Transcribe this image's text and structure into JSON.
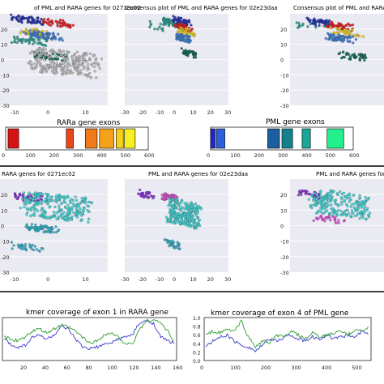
{
  "figure": {
    "section_a": {
      "scatter_titles": [
        "of PML and RARA genes for 0271ec02",
        "Consensus plot of PML and RARA genes for 02e23daa",
        "Consensus plot of PML and RARA genes for"
      ],
      "exon_titles": [
        "RARa gene exons",
        "PML gene exons"
      ]
    },
    "section_b": {
      "scatter_titles": [
        "RARA genes for 0271ec02",
        "PML and RARA genes for 02e23daa",
        "PML and RARA genes for"
      ]
    },
    "section_c": {
      "line_titles": [
        "kmer coverage of exon 1 in RARA gene",
        "kmer coverage of exon 4 of PML gene"
      ]
    }
  },
  "colors": {
    "panel_bg": "#eaeaf2",
    "grid": "#ffffff",
    "line_blue": "#3a3ac8",
    "line_green": "#2e9e2e",
    "rara_exons": [
      "#d61313",
      "#e8461b",
      "#f07a1a",
      "#f5a21a",
      "#f7d018",
      "#f6f01e"
    ],
    "pml_exons": [
      "#1f28c9",
      "#2a5fe0",
      "#1d5e9e",
      "#13808c",
      "#1aa698",
      "#22f08a"
    ],
    "clusters_a": [
      "#1f2fb0",
      "#e81a1a",
      "#f0d21a",
      "#3c7fd6",
      "#1f9f8f",
      "#0f6b58",
      "#bdbdbd"
    ],
    "clusters_b": [
      "#3fd6d6",
      "#8a2fd6",
      "#2ab0c8",
      "#e14fd6"
    ]
  },
  "chart_data": [
    {
      "type": "scatter",
      "title": "of PML and RARA genes for 0271ec02",
      "ylim": [
        -30,
        30
      ],
      "yticks": [
        20,
        10,
        0,
        -10,
        -20,
        -30
      ],
      "xticks": [
        -10,
        0,
        10
      ],
      "clusters": [
        {
          "x": -6,
          "y": 26,
          "n": 60,
          "color": "#1f2fb0"
        },
        {
          "x": 2,
          "y": 24,
          "n": 40,
          "color": "#e81a1a"
        },
        {
          "x": -4,
          "y": 18,
          "n": 30,
          "color": "#f0d21a"
        },
        {
          "x": -2,
          "y": 16,
          "n": 70,
          "color": "#3c7fd6"
        },
        {
          "x": -6,
          "y": 12,
          "n": 40,
          "color": "#1f9f8f"
        },
        {
          "x": 0,
          "y": 2,
          "n": 50,
          "color": "#0f6b58"
        },
        {
          "x": 4,
          "y": -2,
          "n": 260,
          "color": "#bdbdbd"
        }
      ]
    },
    {
      "type": "scatter",
      "title": "Consensus plot of PML and RARA genes for 02e23daa",
      "ylim": [
        -30,
        30
      ],
      "xticks": [
        -30,
        -20,
        -10,
        0,
        10,
        20,
        30
      ],
      "clusters": [
        {
          "x": -3,
          "y": 24,
          "n": 40,
          "color": "#1f9f8f"
        },
        {
          "x": 3,
          "y": 25,
          "n": 60,
          "color": "#1f2fb0"
        },
        {
          "x": 4,
          "y": 21,
          "n": 40,
          "color": "#e81a1a"
        },
        {
          "x": 6,
          "y": 18,
          "n": 30,
          "color": "#f0d21a"
        },
        {
          "x": 4,
          "y": 14,
          "n": 60,
          "color": "#3c7fd6"
        },
        {
          "x": -12,
          "y": 22,
          "n": 12,
          "color": "#1f9f8f"
        },
        {
          "x": 8,
          "y": 4,
          "n": 40,
          "color": "#0f6b58"
        }
      ]
    },
    {
      "type": "scatter",
      "title": "Consensus plot of PML and RARA genes for",
      "ylim": [
        -30,
        30
      ],
      "yticks": [
        20,
        10,
        0,
        -10,
        -20,
        -30
      ],
      "clusters": [
        {
          "x": -4,
          "y": 24,
          "n": 50,
          "color": "#1f2fb0"
        },
        {
          "x": 2,
          "y": 22,
          "n": 40,
          "color": "#e81a1a"
        },
        {
          "x": 4,
          "y": 18,
          "n": 30,
          "color": "#f0d21a"
        },
        {
          "x": 2,
          "y": 14,
          "n": 60,
          "color": "#3c7fd6"
        },
        {
          "x": -8,
          "y": 22,
          "n": 12,
          "color": "#1f9f8f"
        },
        {
          "x": 6,
          "y": 2,
          "n": 40,
          "color": "#0f6b58"
        }
      ]
    },
    {
      "type": "bar",
      "title": "RARa gene exons",
      "xlim": [
        0,
        600
      ],
      "xticks": [
        0,
        100,
        200,
        300,
        400,
        500,
        600
      ],
      "exons": [
        [
          10,
          55
        ],
        [
          255,
          285
        ],
        [
          335,
          385
        ],
        [
          395,
          455
        ],
        [
          465,
          495
        ],
        [
          500,
          545
        ]
      ]
    },
    {
      "type": "bar",
      "title": "PML gene exons",
      "xlim": [
        0,
        600
      ],
      "xticks": [
        0,
        100,
        200,
        300,
        400,
        500,
        600
      ],
      "exons": [
        [
          0,
          20
        ],
        [
          25,
          60
        ],
        [
          240,
          290
        ],
        [
          300,
          345
        ],
        [
          385,
          420
        ],
        [
          490,
          560
        ]
      ]
    },
    {
      "type": "scatter",
      "title": "RARA genes for 0271ec02",
      "ylim": [
        -30,
        30
      ],
      "yticks": [
        20,
        10,
        0,
        -10,
        -20,
        -30
      ],
      "xticks": [
        -10,
        0,
        10
      ],
      "clusters": [
        {
          "x": -6,
          "y": 18,
          "n": 40,
          "color": "#8a2fd6"
        },
        {
          "x": 2,
          "y": 12,
          "n": 260,
          "color": "#3fd6d6"
        },
        {
          "x": -2,
          "y": -2,
          "n": 60,
          "color": "#2ab0c8"
        },
        {
          "x": -6,
          "y": -14,
          "n": 30,
          "color": "#2ab0c8"
        }
      ]
    },
    {
      "type": "scatter",
      "title": "PML and RARA genes for 02e23daa",
      "ylim": [
        -30,
        30
      ],
      "xticks": [
        -30,
        -20,
        -10,
        0,
        10,
        20,
        30
      ],
      "clusters": [
        {
          "x": -18,
          "y": 20,
          "n": 30,
          "color": "#8a2fd6"
        },
        {
          "x": -4,
          "y": 18,
          "n": 60,
          "color": "#e14fd6"
        },
        {
          "x": 4,
          "y": 8,
          "n": 260,
          "color": "#3fd6d6"
        },
        {
          "x": -2,
          "y": -12,
          "n": 30,
          "color": "#2ab0c8"
        }
      ]
    },
    {
      "type": "scatter",
      "title": "PML and RARA genes for",
      "ylim": [
        -30,
        30
      ],
      "yticks": [
        20,
        10,
        0,
        -10,
        -20,
        -30
      ],
      "clusters": [
        {
          "x": -8,
          "y": 20,
          "n": 30,
          "color": "#8a2fd6"
        },
        {
          "x": 2,
          "y": 14,
          "n": 230,
          "color": "#3fd6d6"
        },
        {
          "x": -2,
          "y": 4,
          "n": 30,
          "color": "#e14fd6"
        }
      ]
    },
    {
      "type": "line",
      "title": "kmer coverage of exon 1 in RARA gene",
      "xlim": [
        0,
        160
      ],
      "xticks": [
        20,
        40,
        60,
        80,
        100,
        120,
        140,
        160
      ],
      "series": [
        {
          "color": "#3a3ac8",
          "y": [
            0.5,
            0.35,
            0.3,
            0.35,
            0.55,
            0.6,
            0.5,
            0.6,
            0.8,
            0.75,
            0.5,
            0.3,
            0.25,
            0.3,
            0.35,
            0.4,
            0.5,
            0.55,
            0.6,
            0.9,
            0.95,
            0.9,
            0.55,
            0.45,
            0.4
          ]
        },
        {
          "color": "#2e9e2e",
          "y": [
            0.55,
            0.5,
            0.45,
            0.55,
            0.7,
            0.75,
            0.65,
            0.75,
            0.85,
            0.8,
            0.7,
            0.55,
            0.4,
            0.45,
            0.6,
            0.65,
            0.55,
            0.4,
            0.35,
            0.75,
            0.95,
            1.0,
            0.9,
            0.7,
            0.4
          ]
        }
      ]
    },
    {
      "type": "line",
      "title": "kmer coverage of exon 4 of PML gene",
      "xlim": [
        0,
        550
      ],
      "ylim": [
        0,
        1.0
      ],
      "yticks": [
        1.0,
        0.8,
        0.6,
        0.4,
        0.2,
        0.0
      ],
      "xticks": [
        0,
        100,
        200,
        300,
        400,
        500
      ],
      "series": [
        {
          "color": "#3a3ac8",
          "y": [
            0.3,
            0.45,
            0.55,
            0.6,
            0.45,
            0.35,
            0.3,
            0.2,
            0.35,
            0.5,
            0.45,
            0.55,
            0.6,
            0.5,
            0.45,
            0.55,
            0.5,
            0.6,
            0.5,
            0.55,
            0.6,
            0.55,
            0.7,
            0.6
          ]
        },
        {
          "color": "#2e9e2e",
          "y": [
            0.6,
            0.7,
            0.65,
            0.75,
            0.7,
            0.95,
            0.55,
            0.3,
            0.45,
            0.4,
            0.6,
            0.55,
            0.7,
            0.6,
            0.5,
            0.65,
            0.55,
            0.6,
            0.65,
            0.7,
            0.6,
            0.75,
            0.7,
            0.8
          ]
        }
      ]
    }
  ]
}
